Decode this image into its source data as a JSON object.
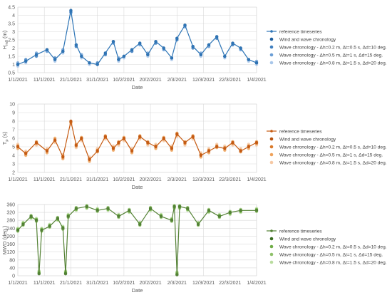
{
  "chart_data": [
    {
      "type": "line",
      "key": "hs",
      "ylabel": "H_m0 (m)",
      "ylabel_main": "H",
      "ylabel_sub": "m0",
      "ylabel_unit": " (m)",
      "xlabel": "Date",
      "ylim": [
        0.5,
        4.5
      ],
      "yticks": [
        "4.5",
        "4",
        "3.5",
        "3",
        "2.5",
        "2",
        "1.5",
        "1",
        "0.5"
      ],
      "ytick_values": [
        4.5,
        4,
        3.5,
        3,
        2.5,
        2,
        1.5,
        1,
        0.5
      ],
      "x_start": "1/1/2021",
      "x_end": "1/4/2021",
      "xticks": [
        "1/1/2021",
        "11/1/2021",
        "21/1/2021",
        "31/1/2021",
        "10/2/2021",
        "20/2/2021",
        "2/3/2021",
        "12/3/2021",
        "22/3/2021",
        "1/4/2021"
      ],
      "x_dates": [
        "1/1/2021",
        "4/1/2021",
        "8/1/2021",
        "12/1/2021",
        "15/1/2021",
        "18/1/2021",
        "21/1/2021",
        "23/1/2021",
        "25/1/2021",
        "28/1/2021",
        "31/1/2021",
        "3/2/2021",
        "6/2/2021",
        "8/2/2021",
        "10/2/2021",
        "13/2/2021",
        "16/2/2021",
        "19/2/2021",
        "22/2/2021",
        "25/2/2021",
        "28/2/2021",
        "2/3/2021",
        "5/3/2021",
        "8/3/2021",
        "11/3/2021",
        "14/3/2021",
        "17/3/2021",
        "20/3/2021",
        "23/3/2021",
        "26/3/2021",
        "29/3/2021",
        "1/4/2021"
      ],
      "colors": [
        "#2e75b6",
        "#1f5f9e",
        "#3f7fbf",
        "#6c9fd6",
        "#a9c7ea"
      ],
      "series": [
        {
          "name": "reference timeseries",
          "values": [
            1.0,
            1.2,
            1.6,
            1.9,
            1.3,
            1.8,
            4.3,
            2.2,
            1.5,
            1.1,
            1.0,
            1.7,
            2.4,
            1.3,
            1.5,
            1.9,
            2.3,
            1.6,
            2.4,
            2.0,
            1.4,
            2.6,
            3.4,
            2.1,
            1.6,
            2.2,
            2.7,
            1.5,
            2.3,
            2.0,
            1.3,
            1.1
          ]
        },
        {
          "name": "Wind and wave chronology",
          "values": [
            1.0,
            1.2,
            1.6,
            1.9,
            1.3,
            1.8,
            4.3,
            2.2,
            1.5,
            1.1,
            1.0,
            1.7,
            2.4,
            1.3,
            1.5,
            1.9,
            2.3,
            1.6,
            2.4,
            2.0,
            1.4,
            2.6,
            3.4,
            2.1,
            1.6,
            2.2,
            2.7,
            1.5,
            2.3,
            2.0,
            1.3,
            1.1
          ]
        },
        {
          "name": "Wave chronology - Δh=0.2 m, Δt=0.5 s, Δd=10 deg.",
          "values": [
            1.0,
            1.3,
            1.5,
            1.9,
            1.4,
            1.8,
            4.2,
            2.1,
            1.5,
            1.1,
            1.1,
            1.6,
            2.4,
            1.3,
            1.5,
            1.8,
            2.3,
            1.6,
            2.3,
            2.0,
            1.4,
            2.5,
            3.4,
            2.0,
            1.6,
            2.2,
            2.6,
            1.5,
            2.2,
            2.0,
            1.3,
            1.1
          ]
        },
        {
          "name": "Wave chronology - Δh=0.5 m, Δt=1 s, Δd=15 deg.",
          "values": [
            1.1,
            1.2,
            1.7,
            1.8,
            1.3,
            1.9,
            4.2,
            2.2,
            1.6,
            1.1,
            1.0,
            1.7,
            2.3,
            1.4,
            1.5,
            1.9,
            2.2,
            1.7,
            2.4,
            1.9,
            1.4,
            2.6,
            3.3,
            2.1,
            1.7,
            2.1,
            2.7,
            1.5,
            2.3,
            1.9,
            1.3,
            1.2
          ]
        },
        {
          "name": "Wave chronology - Δh=0.8 m, Δt=1.5 s, Δd=20 deg.",
          "values": [
            0.9,
            1.1,
            1.6,
            1.8,
            1.2,
            1.7,
            4.1,
            2.1,
            1.4,
            1.0,
            1.0,
            1.6,
            2.3,
            1.2,
            1.4,
            1.8,
            2.2,
            1.5,
            2.3,
            1.9,
            1.3,
            2.5,
            3.3,
            2.0,
            1.5,
            2.1,
            2.6,
            1.4,
            2.2,
            1.9,
            1.2,
            1.0
          ]
        }
      ]
    },
    {
      "type": "line",
      "key": "tp",
      "ylabel": "T_p (s)",
      "ylabel_main": "T",
      "ylabel_sub": "p",
      "ylabel_unit": " (s)",
      "xlabel": "Date",
      "ylim": [
        2,
        10
      ],
      "yticks": [
        "10",
        "9",
        "8",
        "7",
        "6",
        "5",
        "4",
        "3",
        "2"
      ],
      "ytick_values": [
        10,
        9,
        8,
        7,
        6,
        5,
        4,
        3,
        2
      ],
      "x_start": "1/1/2021",
      "x_end": "1/4/2021",
      "xticks": [
        "1/1/2021",
        "11/1/2021",
        "21/1/2021",
        "31/1/2021",
        "10/2/2021",
        "20/2/2021",
        "2/3/2021",
        "12/3/2021",
        "22/3/2021",
        "1/4/2021"
      ],
      "x_dates": [
        "1/1/2021",
        "4/1/2021",
        "8/1/2021",
        "12/1/2021",
        "15/1/2021",
        "18/1/2021",
        "21/1/2021",
        "23/1/2021",
        "25/1/2021",
        "28/1/2021",
        "31/1/2021",
        "3/2/2021",
        "6/2/2021",
        "8/2/2021",
        "10/2/2021",
        "13/2/2021",
        "16/2/2021",
        "19/2/2021",
        "22/2/2021",
        "25/2/2021",
        "28/2/2021",
        "2/3/2021",
        "5/3/2021",
        "8/3/2021",
        "11/3/2021",
        "14/3/2021",
        "17/3/2021",
        "20/3/2021",
        "23/3/2021",
        "26/3/2021",
        "29/3/2021",
        "1/4/2021"
      ],
      "colors": [
        "#c55a11",
        "#b85410",
        "#d97a2b",
        "#efa35c",
        "#f6c9a5"
      ],
      "series": [
        {
          "name": "reference timeseries",
          "values": [
            5.0,
            4.2,
            5.5,
            4.5,
            5.8,
            3.8,
            8.0,
            5.2,
            6.0,
            3.5,
            4.5,
            6.2,
            4.8,
            5.5,
            6.0,
            4.5,
            6.2,
            5.5,
            5.0,
            6.0,
            4.8,
            6.5,
            5.5,
            6.2,
            4.0,
            4.5,
            5.0,
            4.8,
            5.5,
            4.5,
            5.0,
            5.5
          ]
        },
        {
          "name": "Wind and wave chronology",
          "values": [
            5.0,
            4.2,
            5.5,
            4.5,
            5.8,
            3.8,
            8.0,
            5.2,
            6.0,
            3.5,
            4.5,
            6.2,
            4.8,
            5.5,
            6.0,
            4.5,
            6.2,
            5.5,
            5.0,
            6.0,
            4.8,
            6.5,
            5.5,
            6.2,
            4.0,
            4.5,
            5.0,
            4.8,
            5.5,
            4.5,
            5.0,
            5.5
          ]
        },
        {
          "name": "Wave chronology - Δh=0.2 m, Δt=0.5 s, Δd=10 deg.",
          "values": [
            5.1,
            4.3,
            5.4,
            4.6,
            5.7,
            3.9,
            7.9,
            5.1,
            5.9,
            3.6,
            4.6,
            6.1,
            4.9,
            5.4,
            5.9,
            4.6,
            6.1,
            5.4,
            5.1,
            5.9,
            4.9,
            6.4,
            5.4,
            6.1,
            4.1,
            4.6,
            5.1,
            4.9,
            5.4,
            4.6,
            5.1,
            5.4
          ]
        },
        {
          "name": "Wave chronology - Δh=0.5 m, Δt=1 s, Δd=15 deg.",
          "values": [
            4.8,
            4.0,
            5.6,
            4.3,
            6.0,
            3.6,
            7.8,
            5.3,
            6.1,
            3.3,
            4.4,
            6.3,
            4.6,
            5.6,
            6.1,
            4.3,
            6.3,
            5.6,
            4.8,
            6.1,
            4.6,
            6.6,
            5.6,
            6.3,
            3.8,
            4.3,
            4.9,
            4.6,
            5.6,
            4.4,
            4.8,
            5.6
          ]
        },
        {
          "name": "Wave chronology - Δh=0.8 m, Δt=1.5 s, Δd=20 deg.",
          "values": [
            5.3,
            4.5,
            5.2,
            4.8,
            5.5,
            4.1,
            7.6,
            4.9,
            5.7,
            3.8,
            4.8,
            5.9,
            5.1,
            5.2,
            5.7,
            4.8,
            5.9,
            5.2,
            5.3,
            5.7,
            5.1,
            6.2,
            5.2,
            5.9,
            4.3,
            4.8,
            5.3,
            5.1,
            5.2,
            4.8,
            5.3,
            5.2
          ]
        }
      ]
    },
    {
      "type": "line",
      "key": "mwd",
      "ylabel": "MWD (deg.)",
      "ylabel_main": "MWD (deg.)",
      "ylabel_sub": "",
      "ylabel_unit": "",
      "xlabel": "Date",
      "ylim": [
        0,
        360
      ],
      "yticks": [
        "360",
        "320",
        "280",
        "240",
        "200",
        "160",
        "120",
        "80",
        "40",
        "0"
      ],
      "ytick_values": [
        360,
        320,
        280,
        240,
        200,
        160,
        120,
        80,
        40,
        0
      ],
      "x_start": "1/1/2021",
      "x_end": "1/4/2021",
      "xticks": [
        "1/1/2021",
        "11/1/2021",
        "21/1/2021",
        "31/1/2021",
        "10/2/2021",
        "20/2/2021",
        "2/3/2021",
        "12/3/2021",
        "22/3/2021",
        "1/4/2021"
      ],
      "x_dates": [
        "1/1/2021",
        "3/1/2021",
        "6/1/2021",
        "8/1/2021",
        "9/1/2021",
        "10/1/2021",
        "13/1/2021",
        "16/1/2021",
        "18/1/2021",
        "19/1/2021",
        "20/1/2021",
        "23/1/2021",
        "27/1/2021",
        "31/1/2021",
        "4/2/2021",
        "8/2/2021",
        "12/2/2021",
        "16/2/2021",
        "20/2/2021",
        "24/2/2021",
        "28/2/2021",
        "1/3/2021",
        "2/3/2021",
        "3/3/2021",
        "6/3/2021",
        "10/3/2021",
        "14/3/2021",
        "18/3/2021",
        "22/3/2021",
        "26/3/2021",
        "1/4/2021"
      ],
      "colors": [
        "#548235",
        "#3b6e22",
        "#70ad47",
        "#8fc16a",
        "#b9dc9f"
      ],
      "series": [
        {
          "name": "reference timeseries",
          "values": [
            230,
            260,
            300,
            280,
            10,
            230,
            250,
            290,
            240,
            10,
            300,
            340,
            350,
            330,
            340,
            300,
            330,
            260,
            340,
            300,
            280,
            350,
            5,
            350,
            340,
            260,
            330,
            300,
            320,
            330,
            330
          ]
        },
        {
          "name": "Wind and wave chronology",
          "values": [
            230,
            260,
            300,
            280,
            10,
            230,
            250,
            290,
            240,
            10,
            300,
            340,
            350,
            330,
            340,
            300,
            330,
            260,
            340,
            300,
            280,
            350,
            5,
            350,
            340,
            260,
            330,
            300,
            320,
            330,
            330
          ]
        },
        {
          "name": "Wave chronology - Δh=0.2 m, Δt=0.5 s, Δd=10 deg.",
          "values": [
            235,
            265,
            295,
            285,
            15,
            235,
            255,
            285,
            245,
            15,
            305,
            335,
            345,
            335,
            335,
            305,
            325,
            265,
            335,
            305,
            285,
            345,
            10,
            345,
            335,
            265,
            325,
            305,
            315,
            325,
            335
          ]
        },
        {
          "name": "Wave chronology - Δh=0.5 m, Δt=1 s, Δd=15 deg.",
          "values": [
            225,
            255,
            305,
            275,
            20,
            225,
            245,
            295,
            235,
            20,
            295,
            345,
            355,
            325,
            345,
            295,
            335,
            255,
            345,
            295,
            275,
            355,
            15,
            355,
            345,
            255,
            335,
            295,
            325,
            335,
            325
          ]
        },
        {
          "name": "Wave chronology - Δh=0.8 m, Δt=1.5 s, Δd=20 deg.",
          "values": [
            240,
            270,
            290,
            290,
            25,
            240,
            260,
            280,
            250,
            25,
            310,
            330,
            340,
            340,
            330,
            310,
            320,
            270,
            330,
            310,
            290,
            340,
            20,
            340,
            330,
            270,
            320,
            310,
            310,
            320,
            340
          ]
        }
      ]
    }
  ]
}
